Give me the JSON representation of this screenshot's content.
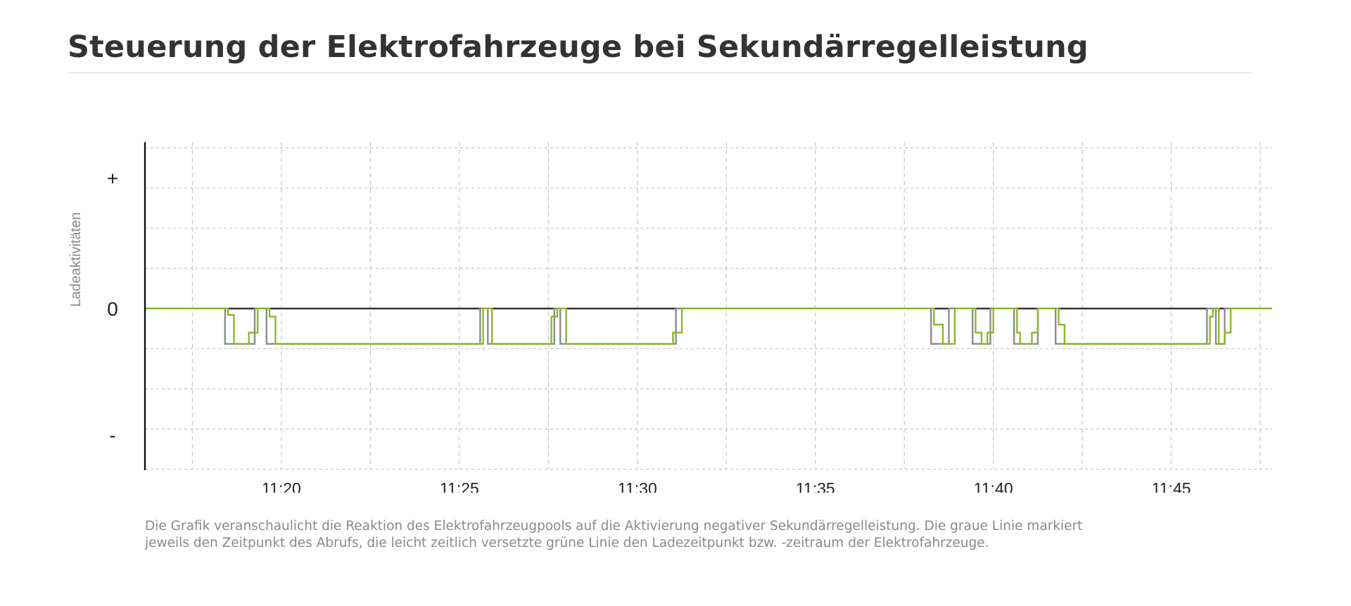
{
  "page": {
    "title": "Steuerung der Elektrofahrzeuge bei Sekundärregelleistung",
    "caption_lines": [
      "Die Grafik veranschaulicht die Reaktion des Elektrofahrzeugpools auf die Aktivierung negativer Sekundärregelleistung. Die graue Linie markiert",
      "jeweils den Zeitpunkt des Abrufs, die leicht zeitlich versetzte grüne Linie den Ladezeitpunkt bzw. -zeitraum der Elektrofahrzeuge."
    ]
  },
  "colors": {
    "abruf_line": "#8c8c8c",
    "lade_line": "#8cb82b",
    "zero_line": "#222222",
    "grid": "#c4c4c4"
  },
  "chart_data": {
    "type": "line",
    "title": "Steuerung der Elektrofahrzeuge bei Sekundärregelleistung",
    "xlabel": "",
    "ylabel": "Ladeaktivitäten",
    "x_unit": "minutes",
    "xlim": [
      "11:16:10",
      "11:47:50"
    ],
    "ylim": [
      -2,
      2
    ],
    "x_ticks": [
      "11:20",
      "11:25",
      "11:30",
      "11:35",
      "11:40",
      "11:45"
    ],
    "y_tick_labels": [
      {
        "value": 1,
        "label": "+"
      },
      {
        "value": 0,
        "label": "0"
      },
      {
        "value": -1,
        "label": "-"
      }
    ],
    "grid": true,
    "legend": "none",
    "series": [
      {
        "color": "#8c8c8c",
        "points": [
          [
            "11:16:10",
            0
          ],
          [
            "11:18:25",
            0
          ],
          [
            "11:18:25",
            -0.44
          ],
          [
            "11:19:15",
            -0.44
          ],
          [
            "11:19:15",
            0
          ],
          [
            "11:19:35",
            0
          ],
          [
            "11:19:35",
            -0.44
          ],
          [
            "11:25:35",
            -0.44
          ],
          [
            "11:25:35",
            0
          ],
          [
            "11:25:48",
            0
          ],
          [
            "11:25:48",
            -0.44
          ],
          [
            "11:27:40",
            -0.44
          ],
          [
            "11:27:40",
            0
          ],
          [
            "11:27:50",
            0
          ],
          [
            "11:27:50",
            -0.44
          ],
          [
            "11:31:05",
            -0.44
          ],
          [
            "11:31:05",
            0
          ],
          [
            "11:38:15",
            0
          ],
          [
            "11:38:15",
            -0.44
          ],
          [
            "11:38:45",
            -0.44
          ],
          [
            "11:38:45",
            0
          ],
          [
            "11:39:25",
            0
          ],
          [
            "11:39:25",
            -0.44
          ],
          [
            "11:39:55",
            -0.44
          ],
          [
            "11:39:55",
            0
          ],
          [
            "11:40:35",
            0
          ],
          [
            "11:40:35",
            -0.44
          ],
          [
            "11:41:15",
            -0.44
          ],
          [
            "11:41:15",
            0
          ],
          [
            "11:41:45",
            0
          ],
          [
            "11:41:45",
            -0.44
          ],
          [
            "11:46:00",
            -0.44
          ],
          [
            "11:46:00",
            0
          ],
          [
            "11:46:15",
            0
          ],
          [
            "11:46:15",
            -0.44
          ],
          [
            "11:46:30",
            -0.44
          ],
          [
            "11:46:30",
            0
          ],
          [
            "11:47:50",
            0
          ]
        ]
      },
      {
        "color": "#8cb82b",
        "points": [
          [
            "11:16:10",
            0
          ],
          [
            "11:18:30",
            0
          ],
          [
            "11:18:30",
            -0.08
          ],
          [
            "11:18:40",
            -0.08
          ],
          [
            "11:18:40",
            -0.44
          ],
          [
            "11:19:05",
            -0.44
          ],
          [
            "11:19:05",
            -0.3
          ],
          [
            "11:19:20",
            -0.3
          ],
          [
            "11:19:20",
            0
          ],
          [
            "11:19:40",
            0
          ],
          [
            "11:19:40",
            -0.1
          ],
          [
            "11:19:50",
            -0.1
          ],
          [
            "11:19:50",
            -0.44
          ],
          [
            "11:25:40",
            -0.44
          ],
          [
            "11:25:40",
            0
          ],
          [
            "11:25:55",
            0
          ],
          [
            "11:25:55",
            -0.44
          ],
          [
            "11:27:35",
            -0.44
          ],
          [
            "11:27:35",
            -0.1
          ],
          [
            "11:27:45",
            -0.1
          ],
          [
            "11:27:45",
            0
          ],
          [
            "11:28:00",
            0
          ],
          [
            "11:28:00",
            -0.44
          ],
          [
            "11:31:00",
            -0.44
          ],
          [
            "11:31:00",
            -0.3
          ],
          [
            "11:31:15",
            -0.3
          ],
          [
            "11:31:15",
            0
          ],
          [
            "11:38:20",
            0
          ],
          [
            "11:38:20",
            -0.2
          ],
          [
            "11:38:35",
            -0.2
          ],
          [
            "11:38:35",
            -0.44
          ],
          [
            "11:38:55",
            -0.44
          ],
          [
            "11:38:55",
            0
          ],
          [
            "11:39:30",
            0
          ],
          [
            "11:39:30",
            -0.3
          ],
          [
            "11:39:40",
            -0.3
          ],
          [
            "11:39:40",
            -0.44
          ],
          [
            "11:39:50",
            -0.44
          ],
          [
            "11:39:50",
            -0.3
          ],
          [
            "11:40:00",
            -0.3
          ],
          [
            "11:40:00",
            0
          ],
          [
            "11:40:40",
            0
          ],
          [
            "11:40:40",
            -0.3
          ],
          [
            "11:40:45",
            -0.3
          ],
          [
            "11:40:45",
            -0.44
          ],
          [
            "11:41:05",
            -0.44
          ],
          [
            "11:41:05",
            -0.3
          ],
          [
            "11:41:15",
            -0.3
          ],
          [
            "11:41:15",
            0
          ],
          [
            "11:41:50",
            0
          ],
          [
            "11:41:50",
            -0.2
          ],
          [
            "11:42:00",
            -0.2
          ],
          [
            "11:42:00",
            -0.44
          ],
          [
            "11:46:05",
            -0.44
          ],
          [
            "11:46:05",
            -0.1
          ],
          [
            "11:46:10",
            -0.1
          ],
          [
            "11:46:10",
            0
          ],
          [
            "11:46:20",
            0
          ],
          [
            "11:46:20",
            -0.44
          ],
          [
            "11:46:30",
            -0.44
          ],
          [
            "11:46:30",
            -0.3
          ],
          [
            "11:46:40",
            -0.3
          ],
          [
            "11:46:40",
            0
          ],
          [
            "11:47:50",
            0
          ]
        ]
      }
    ]
  }
}
